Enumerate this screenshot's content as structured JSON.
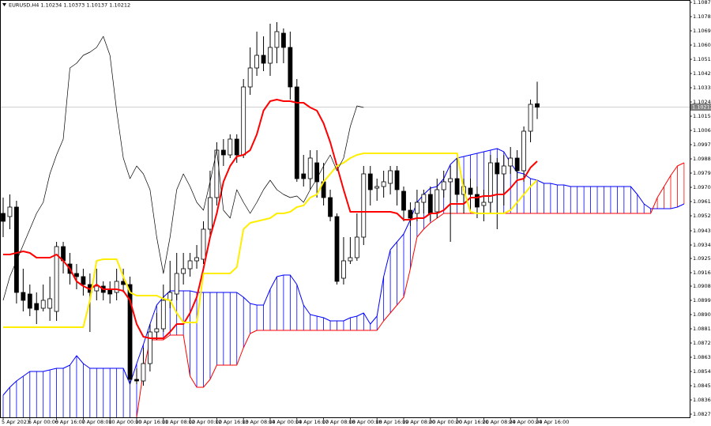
{
  "chart_data": {
    "type": "candlestick",
    "title": "EURUSD,H4  1.10234 1.10373 1.10137 1.10212",
    "categories": [
      "5 Apr 2023",
      null,
      null,
      null,
      "6 Apr 00:00",
      null,
      null,
      null,
      "6 Apr 16:00",
      null,
      null,
      null,
      "7 Apr 08:00",
      null,
      null,
      null,
      "10 Apr 00:00",
      null,
      null,
      null,
      "10 Apr 16:00",
      null,
      null,
      null,
      "11 Apr 08:00",
      null,
      null,
      null,
      "12 Apr 00:00",
      null,
      null,
      null,
      "12 Apr 16:00",
      null,
      null,
      null,
      "13 Apr 08:00",
      null,
      null,
      null,
      "14 Apr 00:00",
      null,
      null,
      null,
      "14 Apr 16:00",
      null,
      null,
      null,
      "17 Apr 08:00",
      null,
      null,
      null,
      "18 Apr 00:00",
      null,
      null,
      null,
      "18 Apr 16:00",
      null,
      null,
      null,
      "19 Apr 08:00",
      null,
      null,
      null,
      "20 Apr 00:00",
      null,
      null,
      null,
      "20 Apr 16:00",
      null,
      null,
      null,
      "21 Apr 08:00",
      null,
      null,
      null,
      "24 Apr 00:00",
      null,
      null,
      null,
      "24 Apr 16:00",
      null,
      null,
      null,
      null,
      null,
      null,
      null,
      null,
      null,
      null,
      null,
      null,
      null,
      null,
      null,
      null,
      null,
      null,
      null,
      null,
      null,
      null
    ],
    "open": [
      1.0954,
      1.0952,
      1.0958,
      1.0904,
      1.0903,
      1.0897,
      1.0894,
      1.0894,
      1.0892,
      1.0933,
      1.0922,
      1.0916,
      1.0914,
      1.0909,
      1.0905,
      1.0908,
      1.0906,
      1.0904,
      1.0911,
      1.0909,
      1.0849,
      1.0848,
      1.0859,
      1.0879,
      1.0881,
      1.0899,
      1.0903,
      1.0916,
      1.0919,
      1.0924,
      1.0925,
      1.0944,
      1.0964,
      1.0994,
      1.0991,
      1.1001,
      1.0991,
      1.1034,
      1.1046,
      1.1054,
      1.1049,
      1.1059,
      1.1068,
      1.1059,
      1.1034,
      1.0979,
      1.0976,
      1.0986,
      1.0974,
      1.0964,
      1.0952,
      1.0913,
      1.0924,
      1.0926,
      1.0939,
      1.0979,
      1.097,
      1.0971,
      1.0973,
      1.0981,
      1.0968,
      1.0956,
      1.0954,
      1.0961,
      1.0966,
      1.0955,
      1.0969,
      1.0974,
      1.0976,
      1.0966,
      1.097,
      1.0966,
      1.0959,
      1.0961,
      1.0986,
      1.0979,
      1.0984,
      1.0989,
      1.0981,
      1.1006,
      1.10234,
      null,
      null,
      null,
      null,
      null,
      null,
      null,
      null,
      null,
      null,
      null,
      null,
      null,
      null,
      null,
      null,
      null,
      null,
      null,
      null,
      null,
      null
    ],
    "high": [
      1.0964,
      1.0966,
      1.0962,
      1.0919,
      1.0909,
      1.0904,
      1.0909,
      1.0914,
      1.0936,
      1.0936,
      1.0929,
      1.0922,
      1.0919,
      1.0916,
      1.0919,
      1.0911,
      1.0911,
      1.0919,
      1.0919,
      1.0914,
      1.0856,
      1.0869,
      1.0884,
      1.0891,
      1.0909,
      1.0924,
      1.0929,
      1.0929,
      1.0929,
      1.0934,
      1.0949,
      1.0981,
      1.0999,
      1.1001,
      1.1004,
      1.1004,
      1.1039,
      1.1059,
      1.1069,
      1.1066,
      1.1074,
      1.1075,
      1.1071,
      1.1069,
      1.1039,
      1.0991,
      1.0994,
      1.0994,
      1.0986,
      1.0969,
      1.0954,
      1.0939,
      1.0939,
      1.0954,
      1.0984,
      1.0984,
      1.0976,
      1.0981,
      1.0984,
      1.0984,
      1.0971,
      1.0961,
      1.0969,
      1.0969,
      1.0971,
      1.0976,
      1.0981,
      1.0984,
      1.0989,
      1.0976,
      1.0976,
      1.0971,
      1.0969,
      1.0991,
      1.0989,
      1.0991,
      1.0996,
      1.0994,
      1.1009,
      1.1026,
      1.10373,
      null,
      null,
      null,
      null,
      null,
      null,
      null,
      null,
      null,
      null,
      null,
      null,
      null,
      null,
      null,
      null,
      null,
      null,
      null,
      null,
      null,
      null
    ],
    "low": [
      1.0939,
      1.0944,
      1.0897,
      1.0892,
      1.0889,
      1.0884,
      1.0892,
      1.0886,
      1.0886,
      1.0916,
      1.0909,
      1.0906,
      1.0902,
      1.0879,
      1.0899,
      1.0899,
      1.0897,
      1.0899,
      1.0904,
      1.0846,
      1.0846,
      1.0845,
      1.0854,
      1.0874,
      1.0879,
      1.0894,
      1.0899,
      1.0909,
      1.0914,
      1.0919,
      1.0922,
      1.0939,
      1.0959,
      1.0984,
      1.0989,
      1.0986,
      1.0989,
      1.1029,
      1.1041,
      1.1044,
      1.1041,
      1.1049,
      1.1049,
      1.1026,
      1.0974,
      1.0971,
      1.0969,
      1.0964,
      1.0959,
      1.0949,
      1.0909,
      1.0909,
      1.0922,
      1.0924,
      1.0934,
      1.0959,
      1.0962,
      1.0964,
      1.0966,
      1.0959,
      1.0949,
      1.0946,
      1.0949,
      1.0954,
      1.0949,
      1.0951,
      1.0964,
      1.0936,
      1.0961,
      1.0954,
      1.0956,
      1.0951,
      1.0949,
      1.0954,
      1.0944,
      1.0959,
      1.0979,
      1.0976,
      1.0974,
      1.0999,
      1.10137,
      null,
      null,
      null,
      null,
      null,
      null,
      null,
      null,
      null,
      null,
      null,
      null,
      null,
      null,
      null,
      null,
      null,
      null,
      null,
      null,
      null,
      null
    ],
    "close": [
      1.0949,
      1.0958,
      1.0904,
      1.0899,
      1.0894,
      1.0893,
      1.0899,
      1.09,
      1.0933,
      1.0924,
      1.0916,
      1.0914,
      1.0909,
      1.0904,
      1.0908,
      1.0904,
      1.0903,
      1.0911,
      1.0909,
      1.0849,
      1.0848,
      1.0859,
      1.0879,
      1.0881,
      1.0899,
      1.0904,
      1.0916,
      1.0919,
      1.0924,
      1.0926,
      1.0944,
      1.0964,
      1.0994,
      1.0991,
      1.1001,
      1.0991,
      1.1034,
      1.1046,
      1.1054,
      1.1049,
      1.1059,
      1.1069,
      1.1059,
      1.1034,
      1.0976,
      1.0976,
      1.0989,
      1.0974,
      1.0964,
      1.0952,
      1.0911,
      1.0924,
      1.0926,
      1.0939,
      1.0979,
      1.0969,
      1.0971,
      1.0974,
      1.0981,
      1.0969,
      1.0956,
      1.0951,
      1.0961,
      1.0966,
      1.0954,
      1.0969,
      1.0974,
      1.0976,
      1.0966,
      1.0971,
      1.0966,
      1.0958,
      1.0961,
      1.0986,
      1.0979,
      1.0984,
      1.0989,
      1.0981,
      1.1006,
      1.1023,
      1.10212,
      null,
      null,
      null,
      null,
      null,
      null,
      null,
      null,
      null,
      null,
      null,
      null,
      null,
      null,
      null,
      null,
      null,
      null,
      null,
      null,
      null,
      null
    ],
    "up_color": "#ffffff",
    "down_color": "#000000",
    "lines": {
      "tenkan": {
        "color": "#ff0000",
        "values": [
          1.0928,
          1.0928,
          1.0929,
          1.093,
          1.0929,
          1.0926,
          1.0926,
          1.0926,
          1.0928,
          1.0924,
          1.0919,
          1.0911,
          1.0908,
          1.0906,
          1.0909,
          1.0906,
          1.0906,
          1.0906,
          1.0905,
          1.0899,
          1.0884,
          1.0876,
          1.0875,
          1.0875,
          1.0875,
          1.0879,
          1.0884,
          1.0884,
          1.0891,
          1.0901,
          1.0919,
          1.0939,
          1.0954,
          1.0974,
          1.0984,
          1.099,
          1.0991,
          1.0994,
          1.1004,
          1.1019,
          1.1025,
          1.1026,
          1.1025,
          1.1025,
          1.1024,
          1.1024,
          1.1021,
          1.1019,
          1.1011,
          1.0999,
          1.0984,
          1.0969,
          1.0955,
          1.0955,
          1.0955,
          1.0955,
          1.0955,
          1.0955,
          1.0955,
          1.0954,
          1.095,
          1.095,
          1.0951,
          1.0951,
          1.0954,
          1.0954,
          1.0956,
          1.096,
          1.096,
          1.096,
          1.0964,
          1.0964,
          1.0965,
          1.0965,
          1.0966,
          1.0966,
          1.097,
          1.0975,
          1.0976,
          1.0983,
          1.0987,
          null,
          null,
          null,
          null,
          null,
          null,
          null,
          null,
          null,
          null,
          null,
          null,
          null,
          null,
          null,
          null,
          null,
          null,
          null,
          null,
          null,
          null
        ]
      },
      "kijun": {
        "color": "#ffee00",
        "values": [
          1.0882,
          1.0882,
          1.0882,
          1.0882,
          1.0882,
          1.0882,
          1.0882,
          1.0882,
          1.0882,
          1.0882,
          1.0882,
          1.0882,
          1.0882,
          1.0899,
          1.0924,
          1.0925,
          1.0925,
          1.0925,
          1.0914,
          1.0904,
          1.0902,
          1.0902,
          1.0902,
          1.0902,
          1.09,
          1.0899,
          1.0891,
          1.0885,
          1.0885,
          1.0885,
          1.0916,
          1.0916,
          1.0916,
          1.0916,
          1.0916,
          1.092,
          1.0944,
          1.0948,
          1.0949,
          1.095,
          1.0951,
          1.0954,
          1.0954,
          1.0955,
          1.0958,
          1.0959,
          1.0964,
          1.0966,
          1.0974,
          1.0979,
          1.0984,
          1.0986,
          1.0989,
          1.0991,
          1.0992,
          1.0992,
          1.0992,
          1.0992,
          1.0992,
          1.0992,
          1.0992,
          1.0992,
          1.0992,
          1.0992,
          1.0992,
          1.0992,
          1.0992,
          1.0992,
          1.0992,
          1.0969,
          1.0955,
          1.0954,
          1.0954,
          1.0954,
          1.0954,
          1.0954,
          1.0956,
          1.0961,
          1.0966,
          1.0971,
          1.0975,
          null,
          null,
          null,
          null,
          null,
          null,
          null,
          null,
          null,
          null,
          null,
          null,
          null,
          null,
          null,
          null,
          null,
          null,
          null,
          null,
          null,
          null
        ]
      },
      "chikou": {
        "color": "#000000",
        "values": [
          1.0899,
          1.0914,
          1.0924,
          1.0934,
          1.0944,
          1.0954,
          1.0961,
          1.0979,
          1.0991,
          1.1001,
          1.1046,
          1.1049,
          1.1054,
          1.1056,
          1.1059,
          1.1066,
          1.1054,
          1.1019,
          1.0989,
          1.0976,
          1.0984,
          1.0979,
          1.0969,
          1.0939,
          1.0916,
          1.0939,
          1.0969,
          1.0979,
          1.0971,
          1.0961,
          1.0956,
          1.0974,
          1.0994,
          1.0956,
          1.0951,
          1.0969,
          1.0961,
          1.0954,
          1.0961,
          1.0969,
          1.0975,
          1.0969,
          1.0966,
          1.0964,
          1.0965,
          1.0961,
          1.0969,
          1.0976,
          1.0984,
          1.0991,
          1.0981,
          1.0989,
          1.1009,
          1.1022,
          1.1021,
          null,
          null,
          null,
          null,
          null,
          null,
          null,
          null,
          null,
          null,
          null,
          null,
          null,
          null,
          null,
          null,
          null,
          null,
          null,
          null,
          null,
          null,
          null,
          null,
          null,
          null,
          null,
          null,
          null,
          null,
          null,
          null,
          null,
          null,
          null,
          null,
          null,
          null,
          null,
          null,
          null,
          null,
          null,
          null,
          null,
          null,
          null,
          null
        ]
      }
    },
    "cloud": {
      "span_a": {
        "color": "#0000ff",
        "values": [
          1.0839,
          1.0844,
          1.0848,
          1.0851,
          1.0854,
          1.0854,
          1.0854,
          1.0855,
          1.0856,
          1.0856,
          1.0858,
          1.0864,
          1.0859,
          1.0856,
          1.0856,
          1.0856,
          1.0856,
          1.0856,
          1.0856,
          1.0846,
          1.0859,
          1.0871,
          1.0884,
          1.0896,
          1.0901,
          1.0905,
          1.0905,
          1.0905,
          1.0905,
          1.0904,
          1.0904,
          1.0904,
          1.0904,
          1.0904,
          1.0904,
          1.0904,
          1.0901,
          1.0897,
          1.0896,
          1.0896,
          1.0906,
          1.0914,
          1.0915,
          1.0915,
          1.0909,
          1.0896,
          1.089,
          1.0889,
          1.0888,
          1.0886,
          1.0886,
          1.0886,
          1.0888,
          1.0889,
          1.0891,
          1.0884,
          1.0889,
          1.0914,
          1.0931,
          1.0936,
          1.0941,
          1.095,
          1.0961,
          1.0966,
          1.097,
          1.0971,
          1.0976,
          1.0985,
          1.0989,
          1.099,
          1.0991,
          1.0992,
          1.0993,
          1.0994,
          1.0995,
          1.0993,
          1.0986,
          1.098,
          1.0979,
          1.0976,
          1.0975,
          1.0973,
          1.0973,
          1.0972,
          1.0972,
          1.0971,
          1.0971,
          1.0971,
          1.0971,
          1.0971,
          1.0971,
          1.0971,
          1.0971,
          1.0971,
          1.0971,
          1.0966,
          1.096,
          1.0957,
          1.0957,
          1.0957,
          1.0957,
          1.0958,
          1.096
        ]
      },
      "span_b": {
        "color": "#ff0000",
        "values": [
          null,
          null,
          null,
          null,
          null,
          null,
          null,
          null,
          null,
          null,
          null,
          null,
          null,
          null,
          null,
          null,
          null,
          null,
          null,
          null,
          1.0825,
          1.0854,
          1.0874,
          1.0874,
          1.0874,
          1.0877,
          1.0877,
          1.0877,
          1.0851,
          1.0844,
          1.0844,
          1.0849,
          1.0858,
          1.0858,
          1.0858,
          1.0858,
          1.0869,
          1.0878,
          1.088,
          1.088,
          1.088,
          1.088,
          1.088,
          1.088,
          1.088,
          1.088,
          1.088,
          1.088,
          1.088,
          1.088,
          1.088,
          1.088,
          1.088,
          1.088,
          1.088,
          1.088,
          1.088,
          1.0886,
          1.0891,
          1.0896,
          1.0901,
          1.0919,
          1.0939,
          1.0944,
          1.0948,
          1.0951,
          1.0954,
          1.0954,
          1.0954,
          1.0954,
          1.0954,
          1.0954,
          1.0954,
          1.0954,
          1.0954,
          1.0954,
          1.0954,
          1.0954,
          1.0954,
          1.0954,
          1.0954,
          1.0954,
          1.0954,
          1.0954,
          1.0954,
          1.0954,
          1.0954,
          1.0954,
          1.0954,
          1.0954,
          1.0954,
          1.0954,
          1.0954,
          1.0954,
          1.0954,
          1.0954,
          1.0954,
          1.0954,
          1.0964,
          1.0971,
          1.0978,
          1.0984,
          1.0986
        ]
      }
    },
    "last_price": 1.10212,
    "ylim": [
      1.0825,
      1.1089
    ],
    "yticks": [
      1.10875,
      1.10785,
      1.10695,
      1.10605,
      1.10515,
      1.10425,
      1.10335,
      1.10245,
      1.10155,
      1.10065,
      1.09975,
      1.09885,
      1.09795,
      1.09705,
      1.09615,
      1.09525,
      {
        "value": 1.0943,
        "label": "1.09430"
      },
      {
        "value": 1.0934,
        "label": "1.09340"
      },
      1.09255,
      1.09165,
      {
        "value": 1.0908,
        "label": "1.09080"
      },
      {
        "value": 1.0899,
        "label": "1.08990"
      },
      {
        "value": 1.089,
        "label": "1.08900"
      },
      {
        "value": 1.0881,
        "label": "1.08810"
      },
      {
        "value": 1.0872,
        "label": "1.08720"
      },
      {
        "value": 1.0863,
        "label": "1.08630"
      },
      {
        "value": 1.0854,
        "label": "1.08540"
      },
      {
        "value": 1.0845,
        "label": "1.08450"
      },
      {
        "value": 1.0836,
        "label": "1.08360"
      },
      {
        "value": 1.0827,
        "label": "1.08270"
      }
    ]
  }
}
